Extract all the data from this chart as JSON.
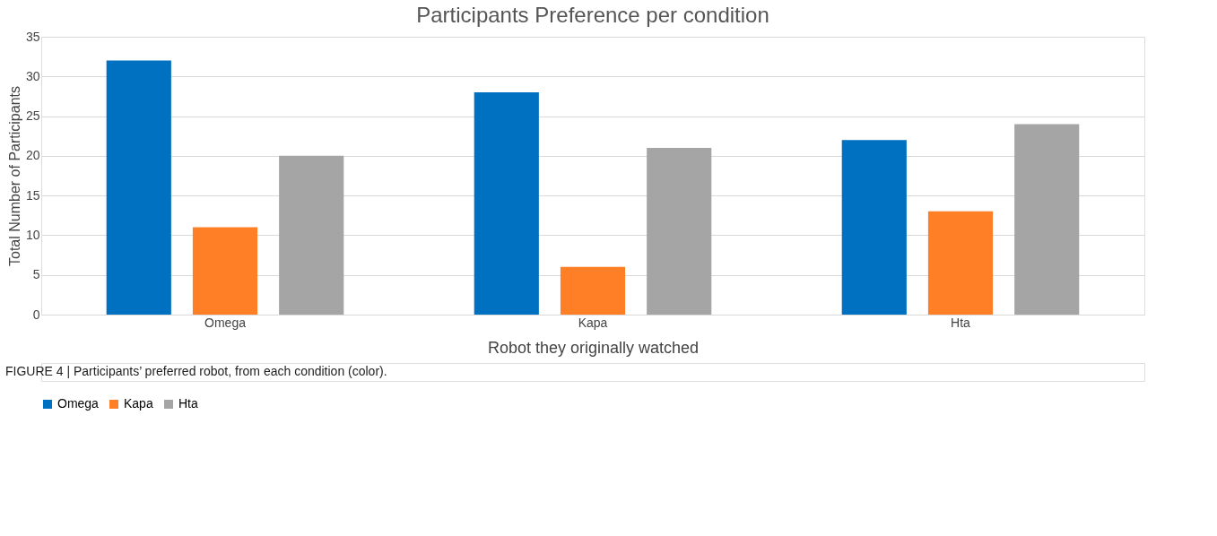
{
  "chart_data": {
    "type": "bar",
    "title": "Participants Preference per condition",
    "xlabel": "Robot they originally watched",
    "ylabel": "Total Number of Participants",
    "categories": [
      "Omega",
      "Kapa",
      "Hta"
    ],
    "series": [
      {
        "name": "Omega",
        "color": "#0070c0",
        "values": [
          32,
          28,
          22
        ]
      },
      {
        "name": "Kapa",
        "color": "#ff7f27",
        "values": [
          11,
          6,
          13
        ]
      },
      {
        "name": "Hta",
        "color": "#a5a5a5",
        "values": [
          20,
          21,
          24
        ]
      }
    ],
    "ylim": [
      0,
      35
    ],
    "yticks": [
      0,
      5,
      10,
      15,
      20,
      25,
      30,
      35
    ],
    "grid": "y",
    "legend": "bottom",
    "annotations": [
      "FIGURE 4 | Participants’ preferred robot, from each condition (color)."
    ]
  }
}
